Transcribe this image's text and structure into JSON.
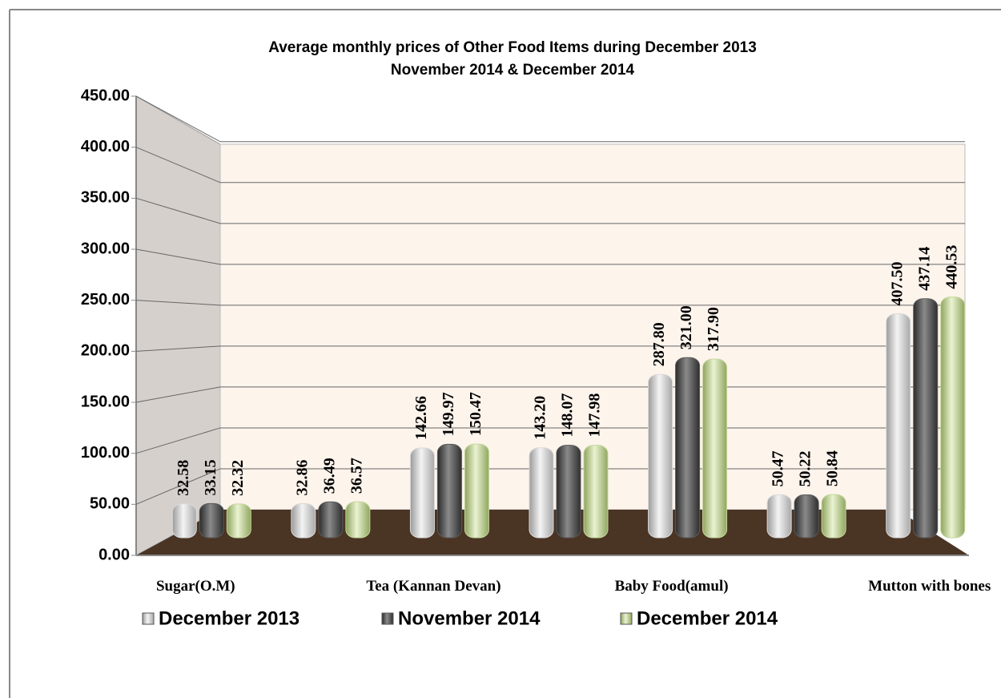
{
  "chart_data": {
    "type": "bar3d",
    "title": "Average monthly prices of Other Food Items during  December  2013",
    "subtitle": "November 2014 & December 2014",
    "categories": [
      "Sugar(O.M)",
      null,
      "Tea (Kannan Devan)",
      null,
      "Baby Food(amul)",
      null,
      "Mutton with  bones"
    ],
    "series": [
      {
        "name": "December 2013",
        "color": "#d9d9d9",
        "values": [
          32.58,
          32.86,
          142.66,
          143.2,
          287.8,
          50.47,
          407.5
        ],
        "value_labels": [
          "32.58",
          "32.86",
          "142.66",
          "143.20",
          "287.80",
          "50.47",
          "407.50"
        ]
      },
      {
        "name": "November 2014",
        "color": "#595959",
        "values": [
          33.15,
          36.49,
          149.97,
          148.07,
          321,
          50.22,
          437.14
        ],
        "value_labels": [
          "33.15",
          "36.49",
          "149.97",
          "148.07",
          "321.00",
          "50.22",
          "437.14"
        ]
      },
      {
        "name": "December 2014",
        "color": "#c4d79b",
        "values": [
          32.32,
          36.57,
          150.47,
          147.98,
          317.9,
          50.84,
          440.53
        ],
        "value_labels": [
          "32.32",
          "36.57",
          "150.47",
          "147.98",
          "317.90",
          "50.84",
          "440.53"
        ]
      }
    ],
    "ylim": [
      0,
      450
    ],
    "yticks": [
      {
        "value": 0,
        "label": "0.00"
      },
      {
        "value": 50,
        "label": "50.00"
      },
      {
        "value": 100,
        "label": "100.00"
      },
      {
        "value": 150,
        "label": "150.00"
      },
      {
        "value": 200,
        "label": "200.00"
      },
      {
        "value": 250,
        "label": "250.00"
      },
      {
        "value": 300,
        "label": "300.00"
      },
      {
        "value": 350,
        "label": "350.00"
      },
      {
        "value": 400,
        "label": "400.00"
      },
      {
        "value": 450,
        "label": "450.00"
      }
    ],
    "grid": true,
    "legend": "bottom"
  }
}
